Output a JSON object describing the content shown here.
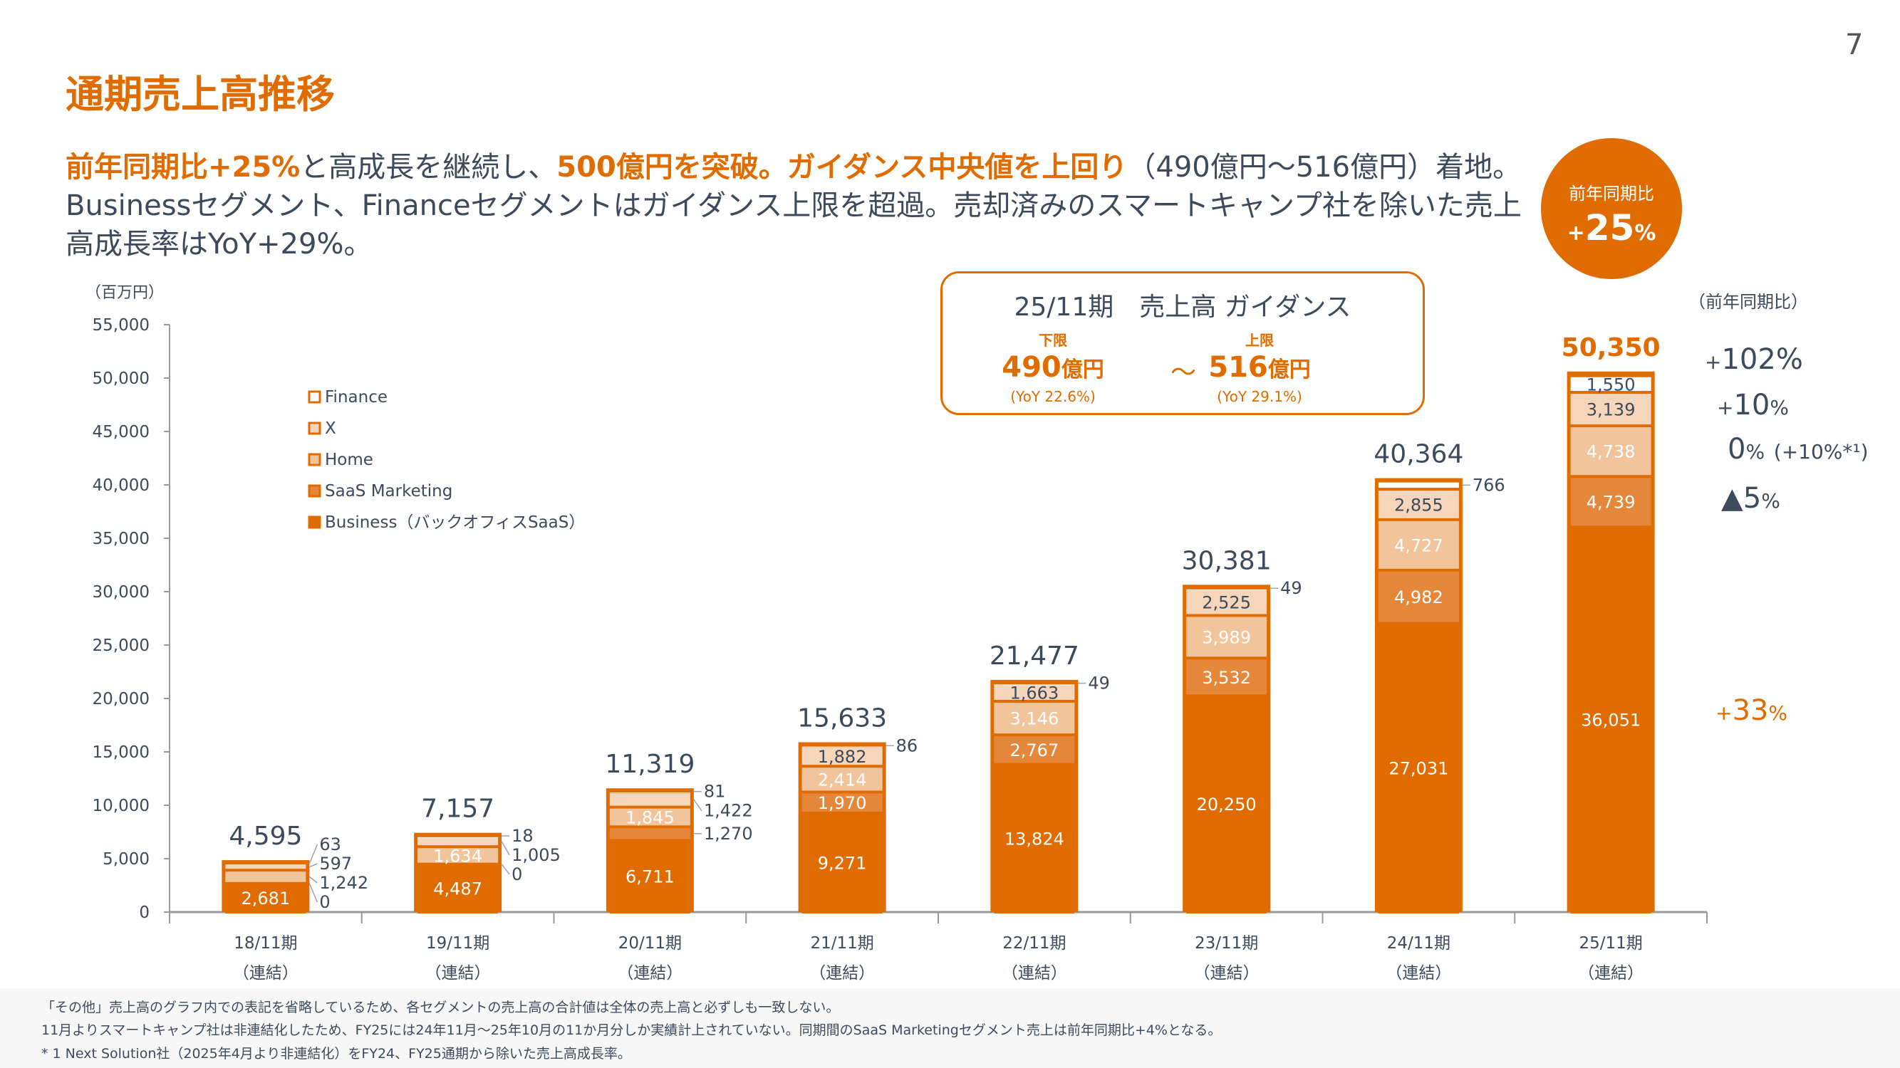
{
  "page_number": "7",
  "title": "通期売上高推移",
  "headline": {
    "p1": "前年同期比+25%",
    "p2": "と高成長を継続し、",
    "p3": "500億円を突破。ガイダンス中央値を上回り",
    "p4": "（490億円～516億円）着地。Businessセグメント、Financeセグメントはガイダンス上限を超過。売却済みのスマートキャンプ社を除いた売上高成長率はYoY+29%。"
  },
  "badge": {
    "label": "前年同期比",
    "sign": "+",
    "value": "25",
    "unit": "%"
  },
  "guidance": {
    "title": "25/11期　売上高 ガイダンス",
    "lower": {
      "caption": "下限",
      "value": "490",
      "unit": "億円",
      "yoy": "(YoY 22.6%)"
    },
    "tilde": "～",
    "upper": {
      "caption": "上限",
      "value": "516",
      "unit": "億円",
      "yoy": "(YoY 29.1%)"
    }
  },
  "yoy_panel": {
    "header": "（前年同期比）",
    "finance": {
      "sign": "+",
      "value": "102",
      "unit": "%"
    },
    "x": {
      "sign": "+",
      "value": "10",
      "unit": "%"
    },
    "home": {
      "value": "0",
      "unit": "%",
      "note": "(+10%*¹)"
    },
    "saas": {
      "value": "▲5",
      "unit": "%"
    },
    "business": {
      "sign": "+",
      "value": "33",
      "unit": "%"
    }
  },
  "colors": {
    "accent": "#e06c00",
    "business": "#e06c00",
    "saas_marketing": "#e5873a",
    "home": "#f2c49b",
    "x": "#f6d6bb",
    "finance": "#ffffff",
    "text": "#3d4a5c"
  },
  "chart_data": {
    "type": "bar",
    "stacked": true,
    "unit_label": "（百万円）",
    "ylim": [
      0,
      55000
    ],
    "yticks": [
      "0",
      "5,000",
      "10,000",
      "15,000",
      "20,000",
      "25,000",
      "30,000",
      "35,000",
      "40,000",
      "45,000",
      "50,000",
      "55,000"
    ],
    "categories": [
      "18/11期",
      "19/11期",
      "20/11期",
      "21/11期",
      "22/11期",
      "23/11期",
      "24/11期",
      "25/11期"
    ],
    "category_sub": "（連結）",
    "legend_placement": "top-left",
    "series": [
      {
        "name": "Business（バックオフィスSaaS）",
        "values": [
          2681,
          4487,
          6711,
          9271,
          13824,
          20250,
          27031,
          36051
        ]
      },
      {
        "name": "SaaS Marketing",
        "values": [
          0,
          0,
          1270,
          1970,
          2767,
          3532,
          4982,
          4739
        ]
      },
      {
        "name": "Home",
        "values": [
          1242,
          1634,
          1845,
          2414,
          3146,
          3989,
          4727,
          4738
        ]
      },
      {
        "name": "X",
        "values": [
          597,
          1005,
          1422,
          1882,
          1663,
          2525,
          2855,
          3139
        ]
      },
      {
        "name": "Finance",
        "values": [
          63,
          18,
          81,
          86,
          49,
          49,
          766,
          1550
        ]
      }
    ],
    "totals": [
      4595,
      7157,
      11319,
      15633,
      21477,
      30381,
      40364,
      50350
    ]
  },
  "footnotes": [
    "「その他」売上高のグラフ内での表記を省略しているため、各セグメントの売上高の合計値は全体の売上高と必ずしも一致しない。",
    "11月よりスマートキャンプ社は非連結化したため、FY25には24年11月～25年10月の11か月分しか実績計上されていない。同期間のSaaS Marketingセグメント売上は前年同期比+4%となる。",
    "* 1 Next Solution社（2025年4月より非連結化）をFY24、FY25通期から除いた売上高成長率。"
  ]
}
